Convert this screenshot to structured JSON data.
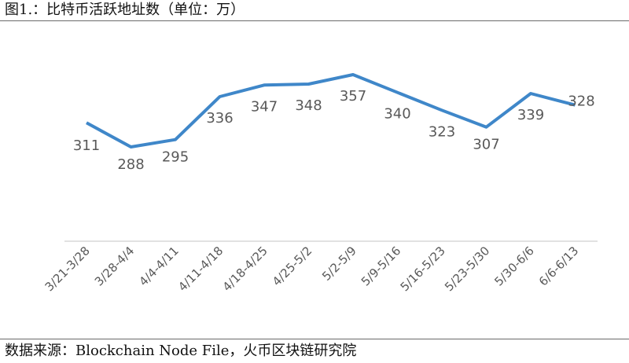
{
  "title": "图1.：比特币活跃地址数（单位：万）",
  "source": "数据来源：Blockchain Node File，火币区块链研究院",
  "colors": {
    "line": "#3f87c9",
    "axis": "#d9d9d9",
    "label": "#595959"
  },
  "chart_data": {
    "type": "line",
    "title": "图1.：比特币活跃地址数（单位：万）",
    "categories": [
      "3/21-3/28",
      "3/28-4/4",
      "4/4-4/11",
      "4/11-4/18",
      "4/18-4/25",
      "4/25-5/2",
      "5/2-5/9",
      "5/9-5/16",
      "5/16-5/23",
      "5/23-5/30",
      "5/30-6/6",
      "6/6-6/13"
    ],
    "series": [
      {
        "values": [
          311,
          288,
          295,
          336,
          347,
          348,
          357,
          340,
          323,
          307,
          339,
          328
        ]
      }
    ],
    "data_labels": true,
    "grid": false
  }
}
